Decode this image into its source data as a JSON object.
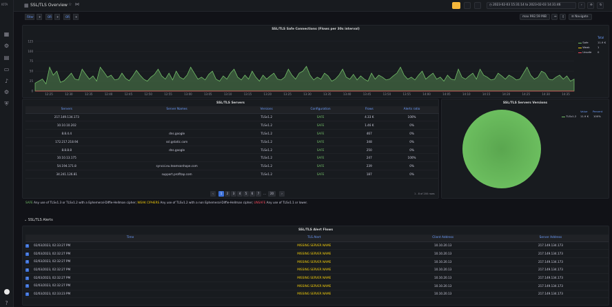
{
  "app": {
    "logo": "IOTA"
  },
  "header": {
    "title": "SSL/TLS Overview",
    "time_range": "2023-02-03 15:31:14 to 2023-02-03 14:31:46",
    "icons": [
      "dashboard-icon",
      "star-icon",
      "share-icon"
    ]
  },
  "variables": {
    "items": [
      {
        "label": "Filter"
      },
      {
        "label": "+"
      },
      {
        "label": "OR"
      },
      {
        "label": "+"
      },
      {
        "label": "OR"
      },
      {
        "label": "+"
      }
    ]
  },
  "toolbar": {
    "max_label": "max 992.59 MiB",
    "navigate_label": "Navigate"
  },
  "colors": {
    "safe": "#73bf69",
    "weak": "#f2cc0c",
    "unsafe": "#f2495c",
    "accent": "#3d71d9",
    "link": "#6e9fff"
  },
  "main_chart": {
    "title": "SSL/TLS Safe Connections (Flows per 30s interval)",
    "legend_header": "Total",
    "legend": [
      {
        "name": "Safe",
        "value": "11.9 K",
        "color": "#73bf69"
      },
      {
        "name": "Weak",
        "value": "1",
        "color": "#f2cc0c"
      },
      {
        "name": "Unsafe",
        "value": "0",
        "color": "#f2495c"
      }
    ]
  },
  "chart_data": [
    {
      "type": "area",
      "title": "SSL/TLS Safe Connections (Flows per 30s interval)",
      "yticks": [
        "0",
        "25",
        "50",
        "75",
        "100",
        "125"
      ],
      "ylim": [
        0,
        130
      ],
      "xticks": [
        "12:25",
        "12:30",
        "12:35",
        "12:40",
        "12:45",
        "12:50",
        "12:55",
        "13:00",
        "13:05",
        "13:10",
        "13:15",
        "13:20",
        "13:25",
        "13:30",
        "13:35",
        "13:40",
        "13:45",
        "13:50",
        "13:55",
        "14:00",
        "14:05",
        "14:10",
        "14:15",
        "14:20",
        "14:25",
        "14:30",
        "14:35"
      ],
      "series": [
        {
          "name": "Safe",
          "values": [
            20,
            25,
            30,
            18,
            60,
            40,
            50,
            22,
            26,
            35,
            45,
            30,
            28,
            55,
            42,
            30,
            38,
            25,
            60,
            48,
            35,
            40,
            28,
            30,
            45,
            32,
            26,
            38,
            52,
            40,
            30,
            25,
            35,
            42,
            55,
            38,
            30,
            45,
            28,
            50,
            35,
            30,
            40,
            60,
            45,
            30,
            35,
            28,
            42,
            50,
            30,
            25,
            38,
            30,
            45,
            55,
            35,
            28,
            40,
            30,
            50,
            35,
            25,
            40,
            30,
            38,
            45,
            30,
            28,
            35,
            55,
            40,
            30,
            45,
            50,
            62,
            40,
            28,
            35,
            30,
            45,
            38,
            25,
            30,
            40,
            55,
            35,
            30,
            42,
            28,
            38,
            30,
            25,
            45,
            30,
            40,
            35,
            28,
            30,
            38,
            45,
            60,
            40,
            30,
            35,
            28,
            40,
            50,
            30,
            38,
            45,
            30,
            35,
            25,
            40,
            30,
            28,
            55,
            35,
            30,
            38,
            45,
            30,
            55,
            40,
            35,
            28,
            30,
            45,
            38,
            30,
            40,
            35,
            28,
            30,
            45,
            60,
            40,
            30,
            35,
            50,
            45,
            30,
            28,
            35,
            40,
            30,
            38,
            25,
            30
          ]
        },
        {
          "name": "Weak",
          "values": [
            0
          ]
        },
        {
          "name": "Unsafe",
          "values": [
            0
          ]
        }
      ]
    },
    {
      "type": "pie",
      "title": "SSL/TLS Servers Versions",
      "legend_headers": [
        "Value",
        "Percent"
      ],
      "slices": [
        {
          "name": "TLSv1.2",
          "value": "11.9 K",
          "percent": "100%",
          "color": "#73bf69"
        }
      ]
    }
  ],
  "servers_table": {
    "title": "SSL/TLS Servers",
    "columns": [
      "Servers",
      "Server Names",
      "Versions",
      "Configuration",
      "Flows",
      "Alerts ratio"
    ],
    "rows": [
      [
        "217.149.134.173",
        "",
        "TLSv1.2",
        "SAFE",
        "4.33 K",
        "100%"
      ],
      [
        "10.10.10.202",
        "",
        "TLSv1.2",
        "SAFE",
        "1.46 K",
        "0%"
      ],
      [
        "8.8.4.4",
        "dns.google",
        "TLSv1.2",
        "SAFE",
        "467",
        "0%"
      ],
      [
        "172.217.218.94",
        "ssl.gstatic.com",
        "TLSv1.2",
        "SAFE",
        "348",
        "0%"
      ],
      [
        "8.8.8.8",
        "dns.google",
        "TLSv1.2",
        "SAFE",
        "250",
        "0%"
      ],
      [
        "10.10.13.175",
        "",
        "TLSv1.2",
        "SAFE",
        "247",
        "100%"
      ],
      [
        "54.194.171.8",
        "syncoi.eu.teamsonhope.com",
        "TLSv1.2",
        "SAFE",
        "239",
        "0%"
      ],
      [
        "34.241.126.81",
        "support.profitap.com",
        "TLSv1.2",
        "SAFE",
        "187",
        "0%"
      ]
    ],
    "pagination": {
      "pages": [
        "1",
        "2",
        "3",
        "4",
        "5",
        "6",
        "7",
        "...",
        "20"
      ],
      "active": "1",
      "summary": "1 - 8 of 200 rows"
    }
  },
  "notice": {
    "safe_word": "SAFE",
    "safe_text": " Any use of TLSv1.3 or TLSv1.2 with a Ephemeral-Diffie-Hellman cipher; ",
    "warn_word": "WEAK CIPHERS",
    "warn_text": " Any use of TLSv1.2 with a non Ephemeral-Diffie-Hellman cipher; ",
    "ins_word": "UNSAFE",
    "ins_text": " Any use of TLSv1.1 or lower."
  },
  "alerts_section": {
    "label": "SSL/TLS Alerts"
  },
  "alerts_table": {
    "title": "SSL/TLS Alert Flows",
    "columns": [
      "Time",
      "TLS Alert",
      "Client Address",
      "Server Address"
    ],
    "rows": [
      [
        "02/03/2023, 02:33:27 PM",
        "MISSING SERVER NAME",
        "10.10.20.13",
        "217.149.134.173"
      ],
      [
        "02/03/2023, 02:32:27 PM",
        "MISSING SERVER NAME",
        "10.10.20.13",
        "217.149.134.173"
      ],
      [
        "02/03/2023, 02:32:27 PM",
        "MISSING SERVER NAME",
        "10.10.20.13",
        "217.149.134.173"
      ],
      [
        "02/03/2023, 02:32:27 PM",
        "MISSING SERVER NAME",
        "10.10.20.13",
        "217.149.134.173"
      ],
      [
        "02/03/2023, 02:32:27 PM",
        "MISSING SERVER NAME",
        "10.10.20.13",
        "217.149.134.173"
      ],
      [
        "02/03/2023, 02:32:27 PM",
        "MISSING SERVER NAME",
        "10.10.20.13",
        "217.149.134.173"
      ],
      [
        "02/03/2023, 02:33:23 PM",
        "MISSING SERVER NAME",
        "10.10.20.13",
        "217.149.134.173"
      ]
    ]
  }
}
